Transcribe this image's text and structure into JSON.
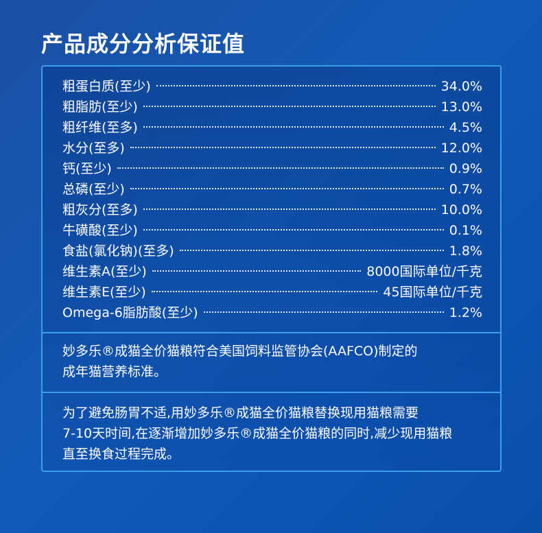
{
  "title": "产品成分分析保证值",
  "nutrients": [
    {
      "name": "粗蛋白质(至少)",
      "value": "34.0%"
    },
    {
      "name": "粗脂肪(至少)",
      "value": "13.0%"
    },
    {
      "name": "粗纤维(至多)",
      "value": "4.5%"
    },
    {
      "name": "水分(至多)",
      "value": "12.0%"
    },
    {
      "name": "钙(至少)",
      "value": "0.9%"
    },
    {
      "name": "总磷(至少)",
      "value": "0.7%"
    },
    {
      "name": "粗灰分(至多)",
      "value": "10.0%"
    },
    {
      "name": "牛磺酸(至少)",
      "value": "0.1%"
    },
    {
      "name": "食盐(氯化钠)(至多)",
      "value": "1.8%"
    },
    {
      "name": "维生素A(至少)",
      "value": "8000国际单位/千克"
    },
    {
      "name": "维生素E(至少)",
      "value": "45国际单位/千克"
    },
    {
      "name": "Omega-6脂肪酸(至少)",
      "value": "1.2%"
    }
  ],
  "note1": {
    "line1": "妙多乐®成猫全价猫粮符合美国饲料监管协会(AAFCO)制定的",
    "line2": "成年猫营养标准。"
  },
  "note2": {
    "line1": "为了避免肠胃不适,用妙多乐®成猫全价猫粮替换现用猫粮需要",
    "line2": "7-10天时间,在逐渐增加妙多乐®成猫全价猫粮的同时,减少现用猫粮",
    "line3": "直至换食过程完成。"
  },
  "colors": {
    "background": "#135bb8",
    "border": "#3aa0ee",
    "text": "#ffffff"
  }
}
